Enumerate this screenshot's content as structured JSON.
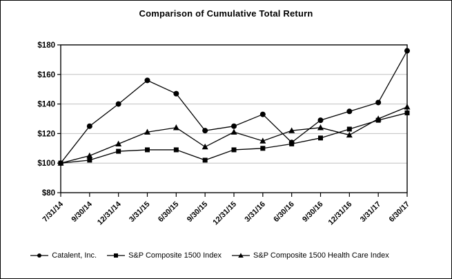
{
  "chart_data": {
    "type": "line",
    "title": "Comparison of Cumulative Total Return",
    "xlabel": "",
    "ylabel": "",
    "ylim": [
      80,
      180
    ],
    "ytick_values": [
      80,
      100,
      120,
      140,
      160,
      180
    ],
    "ytick_labels": [
      "$80",
      "$100",
      "$120",
      "$140",
      "$160",
      "$180"
    ],
    "grid": "horizontal",
    "legend_position": "bottom",
    "x": [
      "7/31/14",
      "9/30/14",
      "12/31/14",
      "3/31/15",
      "6/30/15",
      "9/30/15",
      "12/31/15",
      "3/31/16",
      "6/30/16",
      "9/30/16",
      "12/31/16",
      "3/31/17",
      "6/30/17"
    ],
    "series": [
      {
        "name": "Catalent, Inc.",
        "marker": "circle",
        "values": [
          100,
          125,
          140,
          156,
          147,
          122,
          125,
          133,
          114,
          129,
          135,
          141,
          176
        ]
      },
      {
        "name": "S&P Composite 1500 Index",
        "marker": "square",
        "values": [
          100,
          102,
          108,
          109,
          109,
          102,
          109,
          110,
          113,
          117,
          123,
          129,
          134
        ]
      },
      {
        "name": "S&P Composite 1500 Health Care Index",
        "marker": "triangle",
        "values": [
          100,
          105,
          113,
          121,
          124,
          111,
          121,
          115,
          122,
          124,
          119,
          130,
          138
        ]
      }
    ],
    "colors": {
      "series": "#000000",
      "gridline": "#c0c0c0",
      "axis": "#000000",
      "background": "#ffffff",
      "frame_border": "#000000"
    }
  }
}
